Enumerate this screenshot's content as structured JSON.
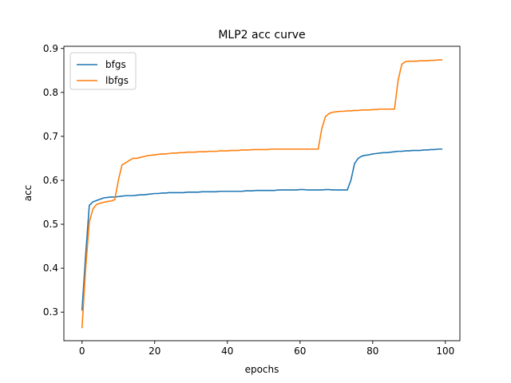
{
  "chart_data": {
    "type": "line",
    "title": "MLP2 acc curve",
    "xlabel": "epochs",
    "ylabel": "acc",
    "xlim": [
      -5,
      104
    ],
    "ylim": [
      0.235,
      0.905
    ],
    "xticks": [
      0,
      20,
      40,
      60,
      80,
      100
    ],
    "yticks": [
      0.3,
      0.4,
      0.5,
      0.6,
      0.7,
      0.8,
      0.9
    ],
    "grid": false,
    "legend_position": "top-left",
    "series": [
      {
        "name": "bfgs",
        "color": "#1f77b4",
        "x": [
          0,
          1,
          2,
          3,
          4,
          5,
          6,
          7,
          8,
          9,
          10,
          11,
          12,
          13,
          14,
          15,
          16,
          17,
          18,
          19,
          20,
          21,
          22,
          23,
          24,
          25,
          26,
          27,
          28,
          29,
          30,
          31,
          32,
          33,
          34,
          35,
          36,
          37,
          38,
          39,
          40,
          41,
          42,
          43,
          44,
          45,
          46,
          47,
          48,
          49,
          50,
          51,
          52,
          53,
          54,
          55,
          56,
          57,
          58,
          59,
          60,
          61,
          62,
          63,
          64,
          65,
          66,
          67,
          68,
          69,
          70,
          71,
          72,
          73,
          74,
          75,
          76,
          77,
          78,
          79,
          80,
          81,
          82,
          83,
          84,
          85,
          86,
          87,
          88,
          89,
          90,
          91,
          92,
          93,
          94,
          95,
          96,
          97,
          98,
          99
        ],
        "y": [
          0.305,
          0.43,
          0.543,
          0.551,
          0.554,
          0.557,
          0.56,
          0.561,
          0.562,
          0.562,
          0.563,
          0.564,
          0.565,
          0.565,
          0.565,
          0.566,
          0.567,
          0.567,
          0.568,
          0.569,
          0.57,
          0.57,
          0.571,
          0.571,
          0.572,
          0.572,
          0.572,
          0.572,
          0.572,
          0.573,
          0.573,
          0.573,
          0.573,
          0.574,
          0.574,
          0.574,
          0.574,
          0.574,
          0.575,
          0.575,
          0.575,
          0.575,
          0.575,
          0.575,
          0.575,
          0.576,
          0.576,
          0.576,
          0.577,
          0.577,
          0.577,
          0.577,
          0.577,
          0.577,
          0.578,
          0.578,
          0.578,
          0.578,
          0.578,
          0.578,
          0.579,
          0.579,
          0.578,
          0.578,
          0.578,
          0.578,
          0.578,
          0.579,
          0.579,
          0.578,
          0.578,
          0.578,
          0.578,
          0.578,
          0.6,
          0.638,
          0.65,
          0.655,
          0.657,
          0.658,
          0.66,
          0.661,
          0.662,
          0.663,
          0.663,
          0.664,
          0.665,
          0.666,
          0.666,
          0.667,
          0.667,
          0.668,
          0.668,
          0.668,
          0.669,
          0.669,
          0.67,
          0.67,
          0.671,
          0.671
        ]
      },
      {
        "name": "lbfgs",
        "color": "#ff7f0e",
        "x": [
          0,
          1,
          2,
          3,
          4,
          5,
          6,
          7,
          8,
          9,
          10,
          11,
          12,
          13,
          14,
          15,
          16,
          17,
          18,
          19,
          20,
          21,
          22,
          23,
          24,
          25,
          26,
          27,
          28,
          29,
          30,
          31,
          32,
          33,
          34,
          35,
          36,
          37,
          38,
          39,
          40,
          41,
          42,
          43,
          44,
          45,
          46,
          47,
          48,
          49,
          50,
          51,
          52,
          53,
          54,
          55,
          56,
          57,
          58,
          59,
          60,
          61,
          62,
          63,
          64,
          65,
          66,
          67,
          68,
          69,
          70,
          71,
          72,
          73,
          74,
          75,
          76,
          77,
          78,
          79,
          80,
          81,
          82,
          83,
          84,
          85,
          86,
          87,
          88,
          89,
          90,
          91,
          92,
          93,
          94,
          95,
          96,
          97,
          98,
          99
        ],
        "y": [
          0.265,
          0.4,
          0.505,
          0.535,
          0.545,
          0.548,
          0.55,
          0.552,
          0.553,
          0.556,
          0.6,
          0.635,
          0.64,
          0.645,
          0.65,
          0.65,
          0.652,
          0.654,
          0.656,
          0.657,
          0.658,
          0.659,
          0.66,
          0.66,
          0.661,
          0.662,
          0.662,
          0.663,
          0.663,
          0.664,
          0.664,
          0.664,
          0.665,
          0.665,
          0.665,
          0.666,
          0.666,
          0.666,
          0.667,
          0.667,
          0.667,
          0.668,
          0.668,
          0.668,
          0.669,
          0.669,
          0.669,
          0.67,
          0.67,
          0.67,
          0.67,
          0.67,
          0.671,
          0.671,
          0.671,
          0.671,
          0.671,
          0.671,
          0.671,
          0.671,
          0.671,
          0.671,
          0.671,
          0.671,
          0.671,
          0.671,
          0.718,
          0.745,
          0.752,
          0.755,
          0.756,
          0.757,
          0.757,
          0.758,
          0.758,
          0.759,
          0.759,
          0.76,
          0.76,
          0.76,
          0.761,
          0.761,
          0.762,
          0.762,
          0.762,
          0.762,
          0.762,
          0.828,
          0.864,
          0.87,
          0.871,
          0.871,
          0.871,
          0.872,
          0.872,
          0.872,
          0.873,
          0.873,
          0.874,
          0.874
        ]
      }
    ]
  }
}
